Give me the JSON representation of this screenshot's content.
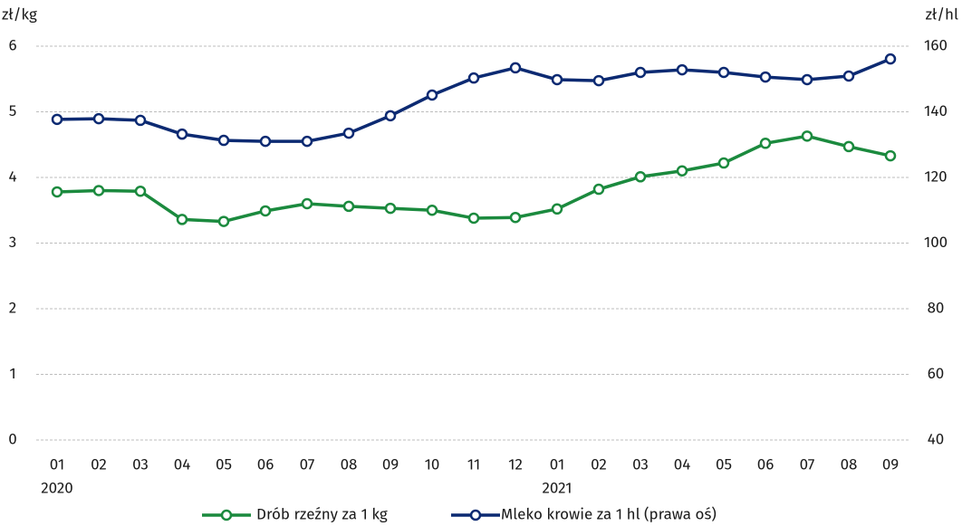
{
  "chart_data": {
    "type": "line",
    "ylabel": "zł/kg",
    "y2label": "zł/hl",
    "categories": [
      "01",
      "02",
      "03",
      "04",
      "05",
      "06",
      "07",
      "08",
      "09",
      "10",
      "11",
      "12",
      "01",
      "02",
      "03",
      "04",
      "05",
      "06",
      "07",
      "08",
      "09"
    ],
    "year_labels": [
      "2020",
      null,
      null,
      null,
      null,
      null,
      null,
      null,
      null,
      null,
      null,
      null,
      "2021",
      null,
      null,
      null,
      null,
      null,
      null,
      null,
      null
    ],
    "series": [
      {
        "name": "Drób rzeźny za 1 kg",
        "color": "#1b8a3e",
        "values": [
          3.78,
          3.8,
          3.79,
          3.36,
          3.33,
          3.49,
          3.6,
          3.56,
          3.53,
          3.5,
          3.38,
          3.39,
          3.52,
          3.82,
          4.01,
          4.1,
          4.22,
          4.52,
          4.63,
          4.47,
          4.33
        ]
      },
      {
        "name": "Mleko krowie za 1 hl (prawa oś)",
        "color": "#0c2a72",
        "axis": "y2",
        "values": [
          137.7,
          137.9,
          137.4,
          133.2,
          131.3,
          131.0,
          131.0,
          133.5,
          138.8,
          145.1,
          150.3,
          153.4,
          149.8,
          149.5,
          152.0,
          152.8,
          152.0,
          150.6,
          149.8,
          150.9,
          156.1
        ]
      }
    ],
    "ylim": [
      0,
      6
    ],
    "yticks": [
      0,
      1,
      2,
      3,
      4,
      5,
      6
    ],
    "y2lim": [
      40,
      160
    ],
    "y2ticks": [
      40,
      60,
      80,
      100,
      120,
      140,
      160
    ],
    "grid": true,
    "legend": "bottom"
  }
}
